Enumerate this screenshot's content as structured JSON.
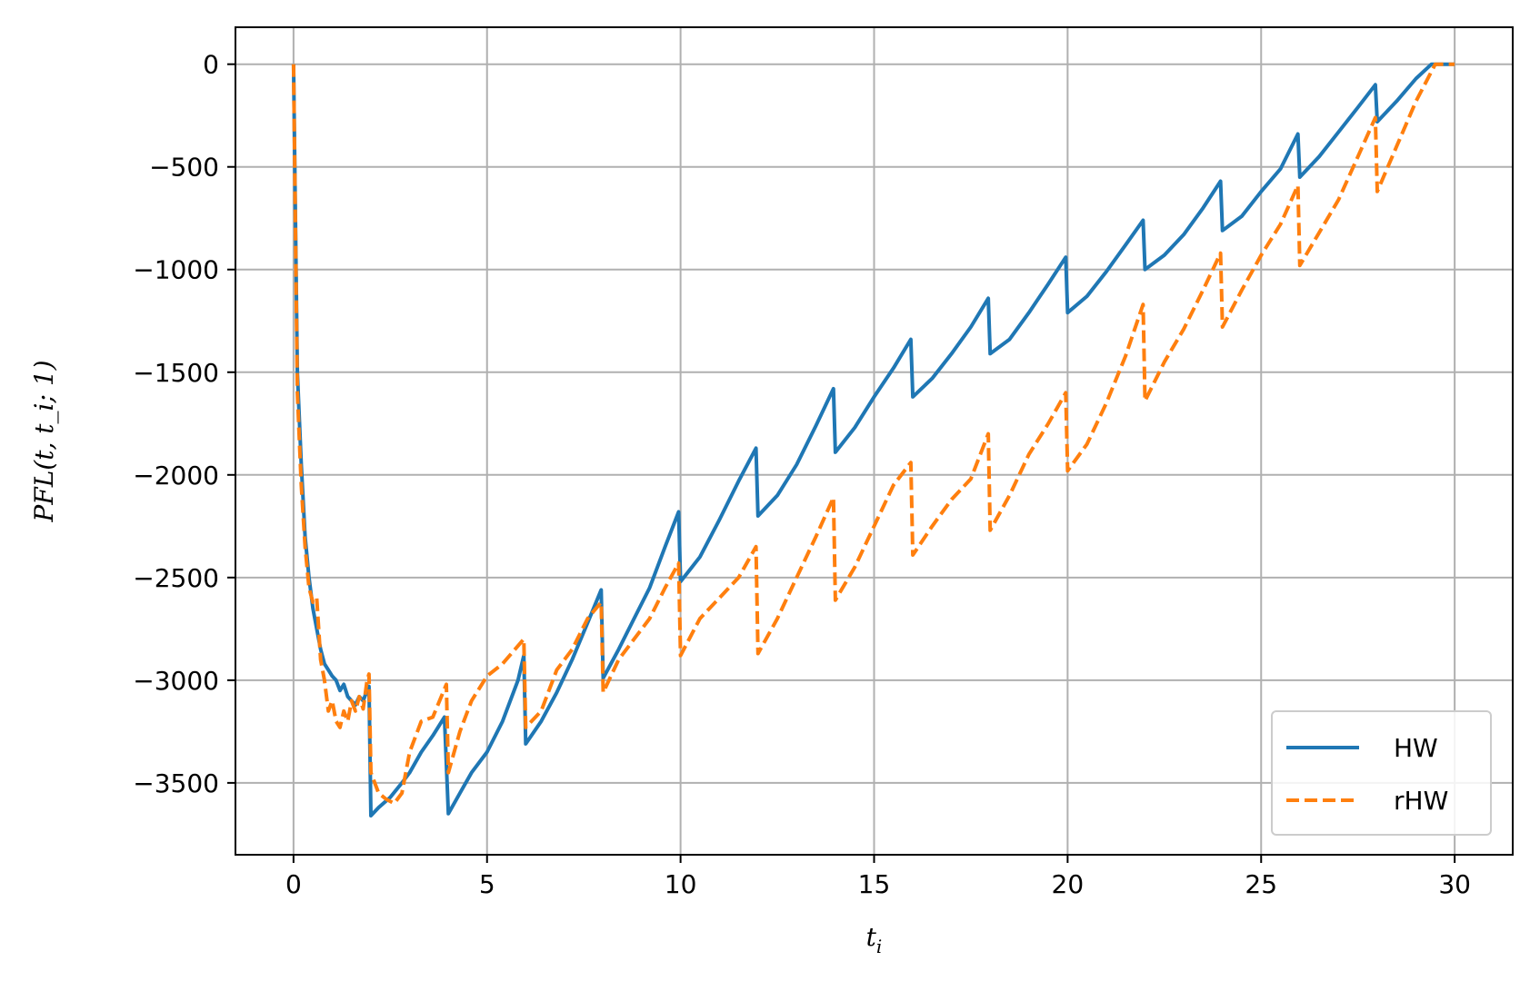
{
  "chart_data": {
    "type": "line",
    "xlabel": "t_i",
    "ylabel": "PFL(t, t_i; 1)",
    "xlim": [
      -1.5,
      31.5
    ],
    "ylim": [
      -3850,
      180
    ],
    "grid": true,
    "legend_position": "lower-right",
    "x_ticks": [
      0,
      5,
      10,
      15,
      20,
      25,
      30
    ],
    "y_ticks": [
      0,
      -500,
      -1000,
      -1500,
      -2000,
      -2500,
      -3000,
      -3500
    ],
    "x_tick_labels": [
      "0",
      "5",
      "10",
      "15",
      "20",
      "25",
      "30"
    ],
    "y_tick_labels": [
      "0",
      "−500",
      "−1000",
      "−1500",
      "−2000",
      "−2500",
      "−3000",
      "−3500"
    ],
    "series": [
      {
        "name": "HW",
        "color": "#1f77b4",
        "dash": "solid",
        "points": [
          [
            0,
            0
          ],
          [
            0.1,
            -1500
          ],
          [
            0.2,
            -1950
          ],
          [
            0.3,
            -2300
          ],
          [
            0.4,
            -2500
          ],
          [
            0.5,
            -2650
          ],
          [
            0.6,
            -2750
          ],
          [
            0.7,
            -2850
          ],
          [
            0.8,
            -2920
          ],
          [
            0.9,
            -2950
          ],
          [
            1.0,
            -2980
          ],
          [
            1.1,
            -3000
          ],
          [
            1.2,
            -3050
          ],
          [
            1.3,
            -3020
          ],
          [
            1.4,
            -3080
          ],
          [
            1.5,
            -3100
          ],
          [
            1.6,
            -3120
          ],
          [
            1.7,
            -3080
          ],
          [
            1.8,
            -3100
          ],
          [
            1.9,
            -3050
          ],
          [
            1.95,
            -3030
          ],
          [
            2.0,
            -3660
          ],
          [
            2.2,
            -3620
          ],
          [
            2.5,
            -3570
          ],
          [
            2.8,
            -3500
          ],
          [
            3.0,
            -3450
          ],
          [
            3.3,
            -3350
          ],
          [
            3.6,
            -3270
          ],
          [
            3.9,
            -3180
          ],
          [
            4.0,
            -3650
          ],
          [
            4.3,
            -3550
          ],
          [
            4.6,
            -3450
          ],
          [
            5.0,
            -3350
          ],
          [
            5.4,
            -3200
          ],
          [
            5.8,
            -3000
          ],
          [
            5.95,
            -2880
          ],
          [
            6.0,
            -3310
          ],
          [
            6.4,
            -3200
          ],
          [
            6.8,
            -3060
          ],
          [
            7.2,
            -2900
          ],
          [
            7.6,
            -2720
          ],
          [
            7.95,
            -2560
          ],
          [
            8.0,
            -2990
          ],
          [
            8.4,
            -2850
          ],
          [
            8.8,
            -2700
          ],
          [
            9.2,
            -2550
          ],
          [
            9.6,
            -2350
          ],
          [
            9.95,
            -2180
          ],
          [
            10.0,
            -2520
          ],
          [
            10.5,
            -2400
          ],
          [
            11.0,
            -2220
          ],
          [
            11.5,
            -2030
          ],
          [
            11.95,
            -1870
          ],
          [
            12.0,
            -2200
          ],
          [
            12.5,
            -2100
          ],
          [
            13.0,
            -1950
          ],
          [
            13.5,
            -1760
          ],
          [
            13.95,
            -1580
          ],
          [
            14.0,
            -1890
          ],
          [
            14.5,
            -1770
          ],
          [
            15.0,
            -1620
          ],
          [
            15.5,
            -1480
          ],
          [
            15.95,
            -1340
          ],
          [
            16.0,
            -1620
          ],
          [
            16.5,
            -1530
          ],
          [
            17.0,
            -1410
          ],
          [
            17.5,
            -1280
          ],
          [
            17.95,
            -1140
          ],
          [
            18.0,
            -1410
          ],
          [
            18.5,
            -1340
          ],
          [
            19.0,
            -1210
          ],
          [
            19.5,
            -1070
          ],
          [
            19.95,
            -940
          ],
          [
            20.0,
            -1210
          ],
          [
            20.5,
            -1130
          ],
          [
            21.0,
            -1010
          ],
          [
            21.5,
            -880
          ],
          [
            21.95,
            -760
          ],
          [
            22.0,
            -1000
          ],
          [
            22.5,
            -930
          ],
          [
            23.0,
            -830
          ],
          [
            23.5,
            -700
          ],
          [
            23.95,
            -570
          ],
          [
            24.0,
            -810
          ],
          [
            24.5,
            -740
          ],
          [
            25.0,
            -620
          ],
          [
            25.5,
            -510
          ],
          [
            25.95,
            -340
          ],
          [
            26.0,
            -550
          ],
          [
            26.5,
            -450
          ],
          [
            27.0,
            -330
          ],
          [
            27.5,
            -210
          ],
          [
            27.95,
            -100
          ],
          [
            28.0,
            -280
          ],
          [
            28.5,
            -180
          ],
          [
            29.0,
            -70
          ],
          [
            29.4,
            0
          ],
          [
            30.0,
            0
          ]
        ]
      },
      {
        "name": "rHW",
        "color": "#ff7f0e",
        "dash": "dashed",
        "points": [
          [
            0,
            0
          ],
          [
            0.1,
            -1600
          ],
          [
            0.2,
            -2050
          ],
          [
            0.3,
            -2350
          ],
          [
            0.4,
            -2550
          ],
          [
            0.5,
            -2620
          ],
          [
            0.6,
            -2600
          ],
          [
            0.7,
            -2900
          ],
          [
            0.8,
            -3000
          ],
          [
            0.9,
            -3150
          ],
          [
            1.0,
            -3100
          ],
          [
            1.1,
            -3200
          ],
          [
            1.2,
            -3230
          ],
          [
            1.3,
            -3150
          ],
          [
            1.4,
            -3200
          ],
          [
            1.5,
            -3100
          ],
          [
            1.6,
            -3150
          ],
          [
            1.7,
            -3080
          ],
          [
            1.8,
            -3140
          ],
          [
            1.9,
            -3000
          ],
          [
            1.95,
            -2970
          ],
          [
            2.0,
            -3450
          ],
          [
            2.2,
            -3550
          ],
          [
            2.4,
            -3580
          ],
          [
            2.6,
            -3600
          ],
          [
            2.8,
            -3550
          ],
          [
            3.0,
            -3350
          ],
          [
            3.3,
            -3200
          ],
          [
            3.6,
            -3180
          ],
          [
            3.95,
            -3020
          ],
          [
            4.0,
            -3450
          ],
          [
            4.3,
            -3250
          ],
          [
            4.6,
            -3100
          ],
          [
            5.0,
            -2980
          ],
          [
            5.4,
            -2920
          ],
          [
            5.95,
            -2800
          ],
          [
            6.0,
            -3230
          ],
          [
            6.4,
            -3150
          ],
          [
            6.8,
            -2950
          ],
          [
            7.2,
            -2850
          ],
          [
            7.6,
            -2700
          ],
          [
            7.95,
            -2620
          ],
          [
            8.0,
            -3060
          ],
          [
            8.4,
            -2900
          ],
          [
            8.8,
            -2800
          ],
          [
            9.2,
            -2700
          ],
          [
            9.6,
            -2550
          ],
          [
            9.95,
            -2430
          ],
          [
            10.0,
            -2880
          ],
          [
            10.5,
            -2700
          ],
          [
            11.0,
            -2600
          ],
          [
            11.5,
            -2500
          ],
          [
            11.95,
            -2350
          ],
          [
            12.0,
            -2870
          ],
          [
            12.5,
            -2700
          ],
          [
            13.0,
            -2500
          ],
          [
            13.5,
            -2300
          ],
          [
            13.95,
            -2110
          ],
          [
            14.0,
            -2610
          ],
          [
            14.5,
            -2450
          ],
          [
            15.0,
            -2250
          ],
          [
            15.5,
            -2050
          ],
          [
            15.95,
            -1940
          ],
          [
            16.0,
            -2390
          ],
          [
            16.5,
            -2250
          ],
          [
            17.0,
            -2120
          ],
          [
            17.5,
            -2020
          ],
          [
            17.95,
            -1800
          ],
          [
            18.0,
            -2270
          ],
          [
            18.5,
            -2100
          ],
          [
            19.0,
            -1900
          ],
          [
            19.5,
            -1750
          ],
          [
            19.95,
            -1600
          ],
          [
            20.0,
            -1980
          ],
          [
            20.5,
            -1850
          ],
          [
            21.0,
            -1650
          ],
          [
            21.5,
            -1420
          ],
          [
            21.95,
            -1170
          ],
          [
            22.0,
            -1640
          ],
          [
            22.5,
            -1450
          ],
          [
            23.0,
            -1290
          ],
          [
            23.5,
            -1100
          ],
          [
            23.95,
            -920
          ],
          [
            24.0,
            -1280
          ],
          [
            24.5,
            -1100
          ],
          [
            25.0,
            -930
          ],
          [
            25.5,
            -780
          ],
          [
            25.95,
            -590
          ],
          [
            26.0,
            -980
          ],
          [
            26.5,
            -820
          ],
          [
            27.0,
            -660
          ],
          [
            27.5,
            -450
          ],
          [
            27.95,
            -260
          ],
          [
            28.0,
            -620
          ],
          [
            28.5,
            -400
          ],
          [
            29.0,
            -180
          ],
          [
            29.5,
            0
          ],
          [
            30.0,
            0
          ]
        ]
      }
    ]
  }
}
